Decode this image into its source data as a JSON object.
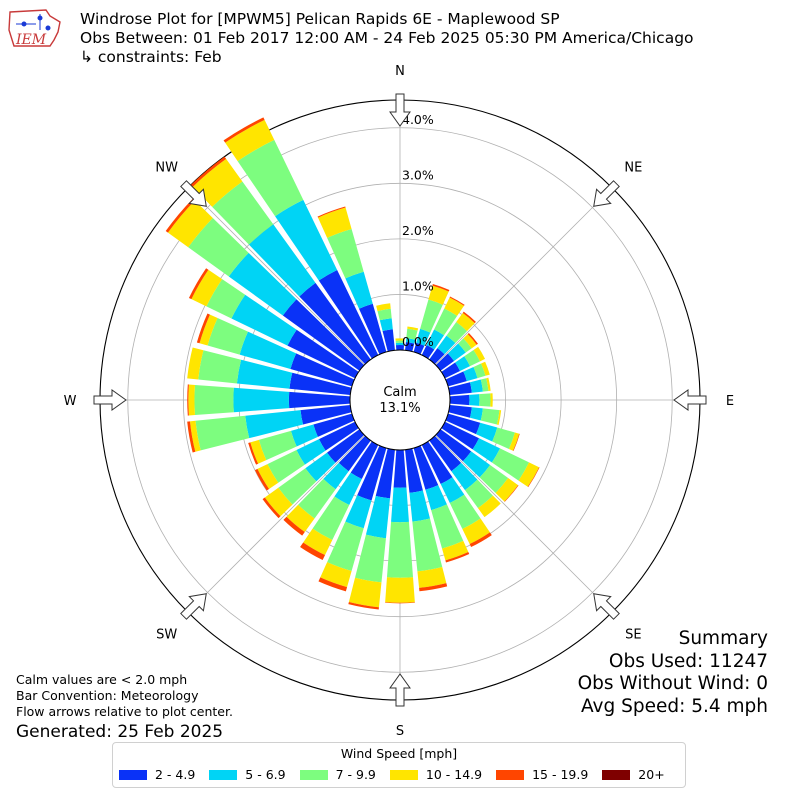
{
  "header": {
    "logo_text": "IEM",
    "title": "Windrose Plot for [MPWM5] Pelican Rapids 6E - Maplewood SP",
    "subtitle": "Obs Between: 01 Feb 2017 12:00 AM - 24 Feb 2025 05:30 PM America/Chicago",
    "constraints": "↳ constraints: Feb"
  },
  "notes": {
    "calm_note": "Calm values are < 2.0 mph",
    "bar_convention": "Bar Convention: Meteorology",
    "flow_arrows": "Flow arrows relative to plot center.",
    "generated": "Generated: 25 Feb 2025"
  },
  "summary": {
    "title": "Summary",
    "obs_used": "Obs Used: 11247",
    "obs_without_wind": "Obs Without Wind: 0",
    "avg_speed": "Avg Speed: 5.4 mph"
  },
  "chart_data": {
    "type": "windrose",
    "calm_label": "Calm",
    "calm_value": "13.1%",
    "ring_labels": [
      "0.0%",
      "1.0%",
      "2.0%",
      "3.0%",
      "4.0%"
    ],
    "radial_max": 4.5,
    "directions": [
      "N",
      "NE",
      "E",
      "SE",
      "S",
      "SW",
      "W",
      "NW"
    ],
    "legend_title": "Wind Speed [mph]",
    "speed_bins": [
      "2 - 4.9",
      "5 - 6.9",
      "7 - 9.9",
      "10 - 14.9",
      "15 - 19.9",
      "20+"
    ],
    "colors": [
      "#0a32f7",
      "#00d4f5",
      "#7dfd7f",
      "#ffe500",
      "#ff4500",
      "#7f0000"
    ],
    "bars": [
      {
        "dir": 0,
        "values": [
          0.09,
          0.04,
          0.04,
          0.04,
          0.0,
          0.0
        ]
      },
      {
        "dir": 10,
        "values": [
          0.15,
          0.07,
          0.17,
          0.04,
          0.0,
          0.0
        ]
      },
      {
        "dir": 20,
        "values": [
          0.17,
          0.26,
          0.55,
          0.26,
          0.03,
          0.0
        ]
      },
      {
        "dir": 30,
        "values": [
          0.2,
          0.31,
          0.42,
          0.22,
          0.02,
          0.0
        ]
      },
      {
        "dir": 40,
        "values": [
          0.25,
          0.28,
          0.3,
          0.2,
          0.03,
          0.0
        ]
      },
      {
        "dir": 50,
        "values": [
          0.3,
          0.26,
          0.13,
          0.11,
          0.03,
          0.0
        ]
      },
      {
        "dir": 60,
        "values": [
          0.3,
          0.2,
          0.2,
          0.1,
          0.0,
          0.0
        ]
      },
      {
        "dir": 70,
        "values": [
          0.35,
          0.2,
          0.15,
          0.08,
          0.0,
          0.0
        ]
      },
      {
        "dir": 80,
        "values": [
          0.4,
          0.2,
          0.1,
          0.04,
          0.0,
          0.0
        ]
      },
      {
        "dir": 90,
        "values": [
          0.35,
          0.18,
          0.2,
          0.04,
          0.0,
          0.0
        ]
      },
      {
        "dir": 100,
        "values": [
          0.4,
          0.2,
          0.3,
          0.03,
          0.0,
          0.0
        ]
      },
      {
        "dir": 110,
        "values": [
          0.6,
          0.32,
          0.33,
          0.08,
          0.01,
          0.0
        ]
      },
      {
        "dir": 120,
        "values": [
          0.68,
          0.42,
          0.58,
          0.2,
          0.01,
          0.0
        ]
      },
      {
        "dir": 130,
        "values": [
          0.68,
          0.42,
          0.4,
          0.22,
          0.01,
          0.0
        ]
      },
      {
        "dir": 140,
        "values": [
          0.68,
          0.42,
          0.4,
          0.2,
          0.0,
          0.0
        ]
      },
      {
        "dir": 150,
        "values": [
          0.78,
          0.38,
          0.52,
          0.3,
          0.06,
          0.0
        ]
      },
      {
        "dir": 160,
        "values": [
          0.78,
          0.38,
          0.72,
          0.22,
          0.04,
          0.0
        ]
      },
      {
        "dir": 170,
        "values": [
          0.78,
          0.52,
          0.9,
          0.3,
          0.06,
          0.0
        ]
      },
      {
        "dir": 180,
        "values": [
          0.68,
          0.62,
          1.0,
          0.45,
          0.01,
          0.0
        ]
      },
      {
        "dir": 190,
        "values": [
          0.88,
          0.72,
          0.8,
          0.45,
          0.04,
          0.0
        ]
      },
      {
        "dir": 200,
        "values": [
          0.98,
          0.52,
          0.8,
          0.3,
          0.08,
          0.0
        ]
      },
      {
        "dir": 210,
        "values": [
          0.68,
          0.52,
          0.7,
          0.3,
          0.1,
          0.0
        ]
      },
      {
        "dir": 220,
        "values": [
          0.68,
          0.4,
          0.65,
          0.3,
          0.08,
          0.0
        ]
      },
      {
        "dir": 230,
        "values": [
          0.72,
          0.48,
          0.6,
          0.3,
          0.05,
          0.0
        ]
      },
      {
        "dir": 240,
        "values": [
          0.72,
          0.45,
          0.58,
          0.2,
          0.05,
          0.0
        ]
      },
      {
        "dir": 250,
        "values": [
          0.72,
          0.42,
          0.6,
          0.16,
          0.04,
          0.0
        ]
      },
      {
        "dir": 260,
        "values": [
          0.9,
          1.0,
          0.9,
          0.1,
          0.05,
          0.0
        ]
      },
      {
        "dir": 270,
        "values": [
          1.1,
          1.0,
          0.7,
          0.11,
          0.02,
          0.0
        ]
      },
      {
        "dir": 280,
        "values": [
          1.1,
          0.95,
          0.7,
          0.2,
          0.0,
          0.0
        ]
      },
      {
        "dir": 290,
        "values": [
          1.15,
          0.95,
          0.6,
          0.15,
          0.05,
          0.0
        ]
      },
      {
        "dir": 300,
        "values": [
          1.35,
          1.12,
          0.5,
          0.3,
          0.05,
          0.0
        ]
      },
      {
        "dir": 310,
        "values": [
          1.7,
          1.2,
          0.9,
          0.45,
          0.05,
          0.0
        ]
      },
      {
        "dir": 320,
        "values": [
          1.7,
          1.3,
          0.95,
          0.5,
          0.05,
          0.0
        ]
      },
      {
        "dir": 330,
        "values": [
          1.7,
          1.4,
          1.2,
          0.4,
          0.05,
          0.0
        ]
      },
      {
        "dir": 340,
        "values": [
          0.9,
          0.6,
          0.8,
          0.4,
          0.02,
          0.0
        ]
      },
      {
        "dir": 350,
        "values": [
          0.38,
          0.2,
          0.17,
          0.1,
          0.0,
          0.0
        ]
      }
    ]
  }
}
